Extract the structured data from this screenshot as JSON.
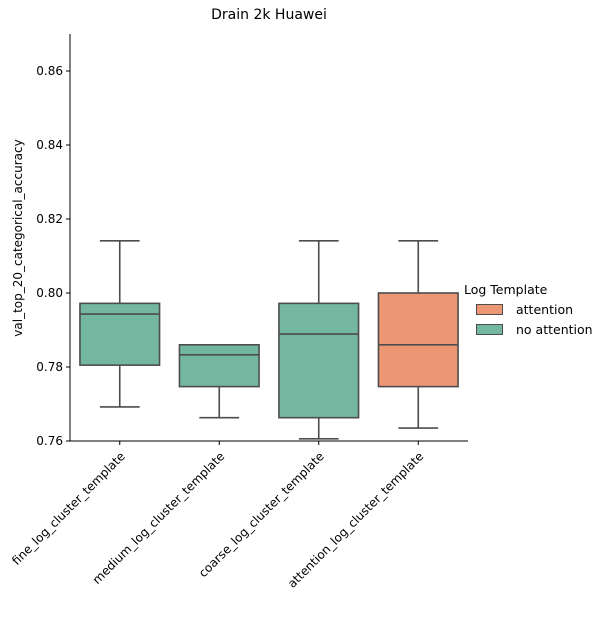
{
  "chart_data": {
    "type": "box",
    "title": "Drain 2k Huawei",
    "xlabel": "",
    "ylabel": "val_top_20_categorical_accuracy",
    "ylim": [
      0.76,
      0.87
    ],
    "yticks": [
      "0.76",
      "0.78",
      "0.80",
      "0.82",
      "0.84",
      "0.86"
    ],
    "categories": [
      "fine_log_cluster_template",
      "medium_log_cluster_template",
      "coarse_log_cluster_template",
      "attention_log_cluster_template"
    ],
    "legend": {
      "title": "Log Template",
      "placement": "right",
      "entries": [
        {
          "name": "attention",
          "color": "#ec9674"
        },
        {
          "name": "no attention",
          "color": "#74b7a1"
        }
      ]
    },
    "boxes": [
      {
        "category": "fine_log_cluster_template",
        "series": "no attention",
        "whisker_low": 0.7692,
        "q1": 0.7805,
        "median": 0.7943,
        "q3": 0.7972,
        "whisker_high": 0.8141
      },
      {
        "category": "medium_log_cluster_template",
        "series": "no attention",
        "whisker_low": 0.7663,
        "q1": 0.7747,
        "median": 0.7833,
        "q3": 0.786,
        "whisker_high": 0.786
      },
      {
        "category": "coarse_log_cluster_template",
        "series": "no attention",
        "whisker_low": 0.7606,
        "q1": 0.7663,
        "median": 0.7889,
        "q3": 0.7972,
        "whisker_high": 0.8141
      },
      {
        "category": "attention_log_cluster_template",
        "series": "attention",
        "whisker_low": 0.7635,
        "q1": 0.7747,
        "median": 0.786,
        "q3": 0.8,
        "whisker_high": 0.8141
      }
    ],
    "grid": false
  }
}
